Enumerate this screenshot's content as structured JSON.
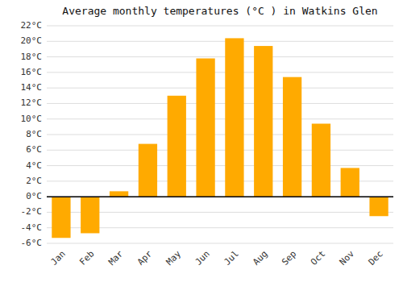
{
  "chart_data": {
    "type": "bar",
    "title": "Average monthly temperatures (°C ) in Watkins Glen",
    "categories": [
      "Jan",
      "Feb",
      "Mar",
      "Apr",
      "May",
      "Jun",
      "Jul",
      "Aug",
      "Sep",
      "Oct",
      "Nov",
      "Dec"
    ],
    "values": [
      -5.3,
      -4.7,
      0.7,
      6.8,
      13.0,
      17.8,
      20.4,
      19.4,
      15.4,
      9.4,
      3.7,
      -2.5
    ],
    "color": "#FFAA00",
    "ylim": [
      -6,
      22
    ],
    "yticks": [
      {
        "value": -6,
        "label": "-6°C"
      },
      {
        "value": -4,
        "label": "-4°C"
      },
      {
        "value": -2,
        "label": "-2°C"
      },
      {
        "value": 0,
        "label": "0°C"
      },
      {
        "value": 2,
        "label": "2°C"
      },
      {
        "value": 4,
        "label": "4°C"
      },
      {
        "value": 6,
        "label": "6°C"
      },
      {
        "value": 8,
        "label": "8°C"
      },
      {
        "value": 10,
        "label": "10°C"
      },
      {
        "value": 12,
        "label": "12°C"
      },
      {
        "value": 14,
        "label": "14°C"
      },
      {
        "value": 16,
        "label": "16°C"
      },
      {
        "value": 18,
        "label": "18°C"
      },
      {
        "value": 20,
        "label": "20°C"
      },
      {
        "value": 22,
        "label": "22°C"
      }
    ],
    "grid": true
  }
}
